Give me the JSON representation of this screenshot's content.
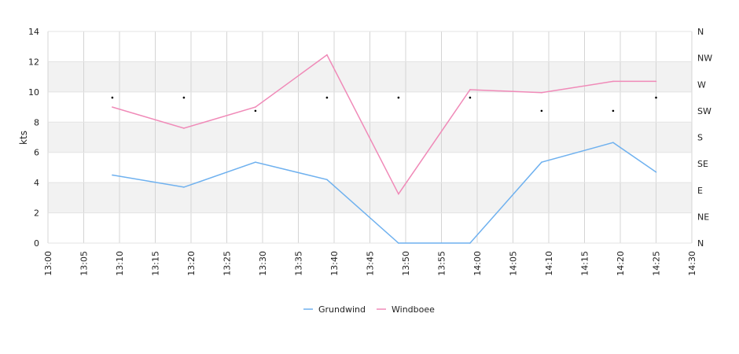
{
  "chart_data": {
    "type": "line",
    "ylabel": "kts",
    "ylim": [
      0,
      14
    ],
    "y_ticks": [
      "0",
      "2",
      "4",
      "6",
      "8",
      "10",
      "12",
      "14"
    ],
    "x_ticks": [
      "13:00",
      "13:05",
      "13:10",
      "13:15",
      "13:20",
      "13:25",
      "13:30",
      "13:35",
      "13:40",
      "13:45",
      "13:50",
      "13:55",
      "14:00",
      "14:05",
      "14:10",
      "14:15",
      "14:20",
      "14:25",
      "14:30"
    ],
    "right_axis_labels": [
      "N",
      "NE",
      "E",
      "SE",
      "S",
      "SW",
      "W",
      "NW",
      "N"
    ],
    "grid": true,
    "legend_position": "bottom",
    "x": [
      "13:09",
      "13:19",
      "13:29",
      "13:39",
      "13:49",
      "13:59",
      "14:09",
      "14:19",
      "14:25"
    ],
    "series": [
      {
        "name": "Grundwind",
        "color": "#6fb1ef",
        "values": [
          4.5,
          3.7,
          5.35,
          4.2,
          0,
          0,
          5.35,
          6.65,
          4.7
        ]
      },
      {
        "name": "Windboee",
        "color": "#f08ab8",
        "values": [
          9.0,
          7.6,
          9.0,
          12.45,
          3.25,
          10.15,
          9.95,
          10.7,
          10.7
        ]
      }
    ],
    "direction_markers": {
      "x": [
        "13:09",
        "13:19",
        "13:29",
        "13:39",
        "13:49",
        "13:59",
        "14:09",
        "14:19",
        "14:25"
      ],
      "direction": [
        "WSW",
        "WSW",
        "SW",
        "WSW",
        "WSW",
        "WSW",
        "SW",
        "SW",
        "WSW"
      ]
    }
  }
}
